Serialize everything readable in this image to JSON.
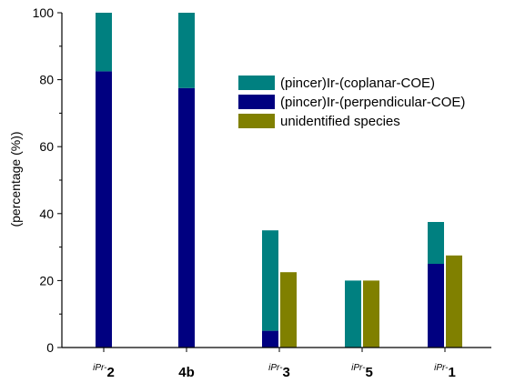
{
  "chart_data": {
    "type": "bar",
    "stacked": true,
    "title": "",
    "xlabel": "",
    "ylabel": "(percentage (%))",
    "ylim": [
      0,
      100
    ],
    "yticks": [
      0,
      20,
      40,
      60,
      80,
      100
    ],
    "grid": false,
    "legend_position": "right",
    "categories": [
      {
        "prefix": "iPr-",
        "name": "2"
      },
      {
        "prefix": "",
        "name": "4b"
      },
      {
        "prefix": "iPr-",
        "name": "3"
      },
      {
        "prefix": "iPr-",
        "name": "5"
      },
      {
        "prefix": "iPr-",
        "name": "1"
      }
    ],
    "series": [
      {
        "name": "(pincer)Ir-(coplanar-COE)",
        "color": "#008080",
        "values": [
          17.5,
          22.5,
          30,
          20,
          12.5
        ],
        "group": "a"
      },
      {
        "name": "(pincer)Ir-(perpendicular-COE)",
        "color": "#000080",
        "values": [
          82.5,
          77.5,
          5,
          0,
          25
        ],
        "group": "a"
      },
      {
        "name": "unidentified species",
        "color": "#808000",
        "values": [
          0,
          0,
          22.5,
          20,
          27.5
        ],
        "group": "b"
      }
    ]
  }
}
